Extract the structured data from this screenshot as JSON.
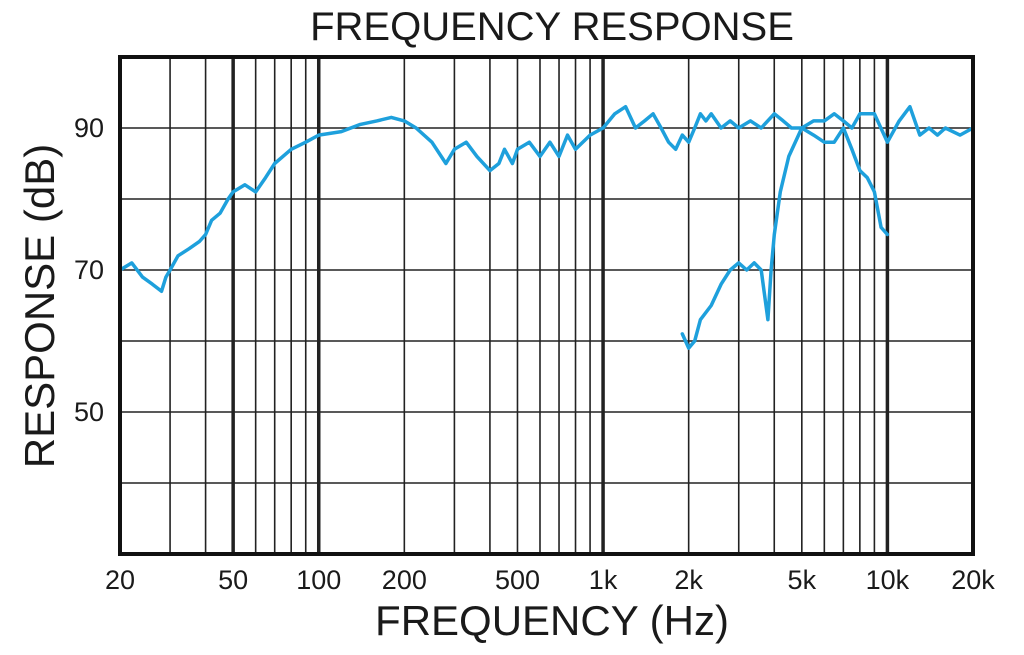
{
  "chart_data": {
    "type": "line",
    "title": "FREQUENCY RESPONSE",
    "xlabel": "FREQUENCY (Hz)",
    "ylabel": "RESPONSE (dB)",
    "x_scale": "log",
    "xlim": [
      20,
      20000
    ],
    "ylim": [
      30,
      100
    ],
    "grid": true,
    "x_ticks": [
      {
        "value": 20,
        "label": "20"
      },
      {
        "value": 50,
        "label": "50"
      },
      {
        "value": 100,
        "label": "100"
      },
      {
        "value": 200,
        "label": "200"
      },
      {
        "value": 500,
        "label": "500"
      },
      {
        "value": 1000,
        "label": "1k"
      },
      {
        "value": 2000,
        "label": "2k"
      },
      {
        "value": 5000,
        "label": "5k"
      },
      {
        "value": 10000,
        "label": "10k"
      },
      {
        "value": 20000,
        "label": "20k"
      }
    ],
    "y_ticks": [
      {
        "value": 90,
        "label": "90"
      },
      {
        "value": 70,
        "label": "70"
      },
      {
        "value": 50,
        "label": "50"
      }
    ],
    "series_color": "#1ea0dc",
    "series": [
      {
        "x": [
          20,
          22,
          24,
          26,
          28,
          29,
          30,
          32,
          35,
          38,
          40,
          42,
          45,
          48,
          50,
          55,
          60,
          65,
          70,
          80,
          90,
          100,
          120,
          140,
          160,
          180,
          200,
          220,
          250,
          280,
          300,
          330,
          360,
          400,
          430,
          450,
          480,
          500,
          550,
          600,
          650,
          700,
          750,
          800,
          900,
          1000,
          1100,
          1200,
          1300,
          1400,
          1500,
          1600,
          1700,
          1800,
          1900,
          2000,
          2100,
          2200,
          2300,
          2400,
          2600,
          2800,
          3000,
          3300,
          3600,
          4000,
          4300,
          4600,
          5000,
          5500,
          6000,
          6500,
          7000,
          7500,
          8000,
          9000,
          10000,
          11000,
          12000,
          13000,
          14000,
          15000,
          16000,
          18000,
          20000
        ],
        "y": [
          70,
          71,
          69,
          68,
          67,
          69,
          70,
          72,
          73,
          74,
          75,
          77,
          78,
          80,
          81,
          82,
          81,
          83,
          85,
          87,
          88,
          89,
          89.5,
          90.5,
          91,
          91.5,
          91,
          90,
          88,
          85,
          87,
          88,
          86,
          84,
          85,
          87,
          85,
          87,
          88,
          86,
          88,
          86,
          89,
          87,
          89,
          90,
          92,
          93,
          90,
          91,
          92,
          90,
          88,
          87,
          89,
          88,
          90,
          92,
          91,
          92,
          90,
          91,
          90,
          91,
          90,
          92,
          91,
          90,
          90,
          91,
          91,
          92,
          91,
          90,
          92,
          92,
          88,
          91,
          93,
          89,
          90,
          89,
          90,
          89,
          90
        ]
      },
      {
        "x": [
          1900,
          2000,
          2100,
          2200,
          2400,
          2600,
          2800,
          3000,
          3200,
          3400,
          3600,
          3800,
          3900,
          4000,
          4200,
          4500,
          5000,
          5500,
          6000,
          6500,
          7000,
          7500,
          8000,
          8500,
          9000,
          9500,
          10000
        ],
        "y": [
          61,
          59,
          60,
          63,
          65,
          68,
          70,
          71,
          70,
          71,
          70,
          63,
          70,
          75,
          81,
          86,
          90,
          89,
          88,
          88,
          90,
          87,
          84,
          83,
          81,
          76,
          75
        ]
      }
    ]
  }
}
